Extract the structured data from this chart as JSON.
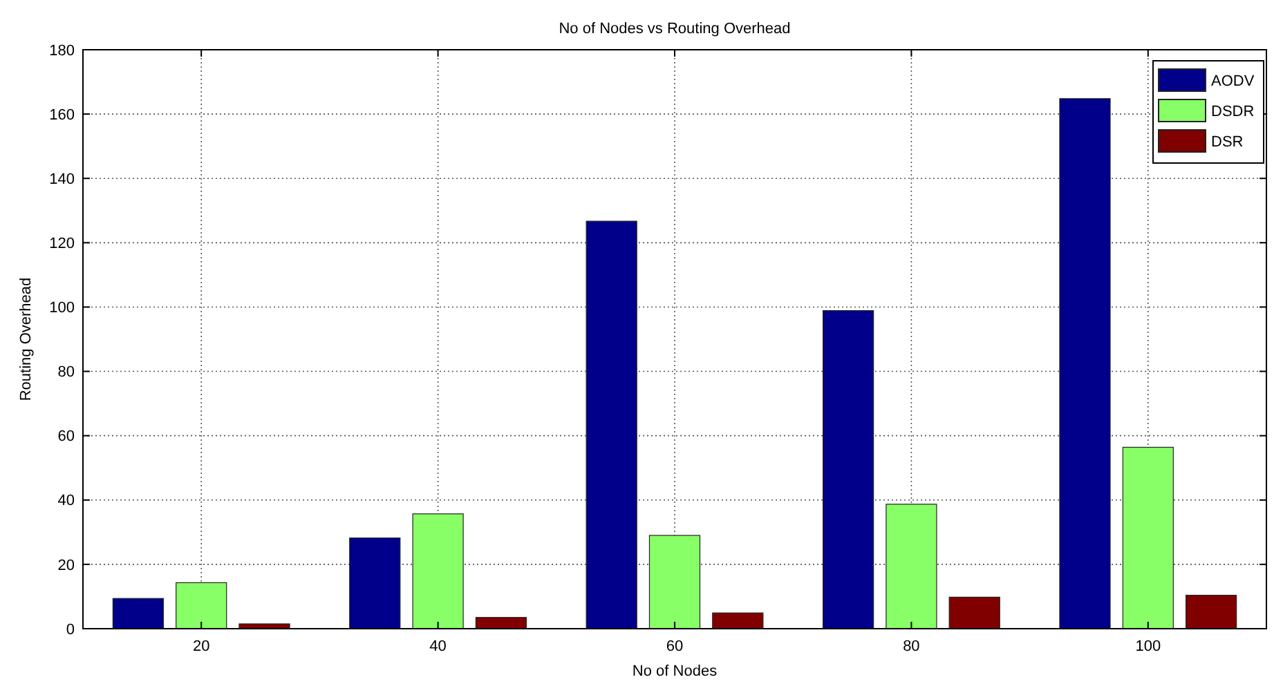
{
  "chart_data": {
    "type": "bar",
    "title": "No of Nodes vs Routing Overhead",
    "xlabel": "No of Nodes",
    "ylabel": "Routing Overhead",
    "categories": [
      "20",
      "40",
      "60",
      "80",
      "100"
    ],
    "series": [
      {
        "name": "AODV",
        "color": "#00008b",
        "values": [
          9.4,
          28.2,
          126.7,
          98.9,
          164.8
        ]
      },
      {
        "name": "DSDR",
        "color": "#88ff66",
        "values": [
          14.3,
          35.7,
          29,
          38.7,
          56.4
        ]
      },
      {
        "name": "DSR",
        "color": "#800000",
        "values": [
          1.5,
          3.5,
          4.9,
          9.8,
          10.4
        ]
      }
    ],
    "ylim": [
      0,
      180
    ],
    "yticks": [
      0,
      20,
      40,
      60,
      80,
      100,
      120,
      140,
      160,
      180
    ],
    "grid": true,
    "legend": "top right"
  }
}
